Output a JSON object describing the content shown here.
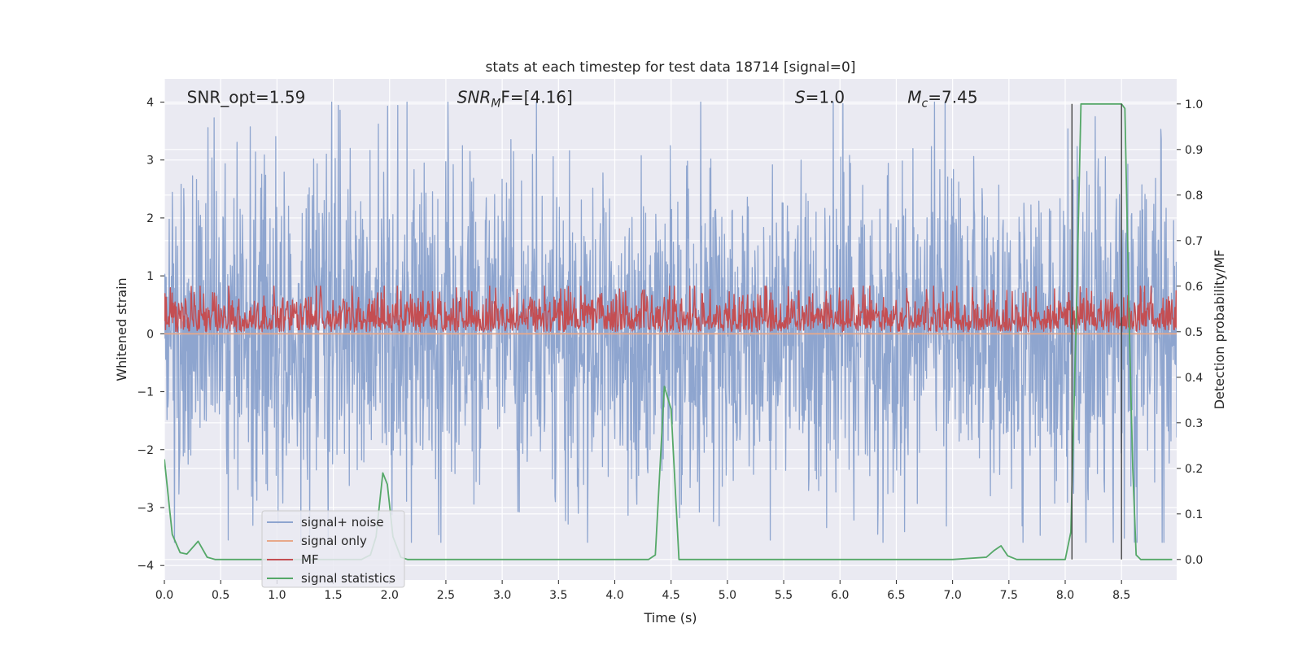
{
  "chart_data": {
    "type": "line",
    "title": "stats at each timestep for test data 18714 [signal=0]",
    "xlabel": "Time (s)",
    "ylabel": "Whitened strain",
    "ylabel_right": "Detection probability/MF",
    "xlim": [
      0.0,
      8.99
    ],
    "ylim": [
      -4.25,
      4.4
    ],
    "ylim_right": [
      -0.045,
      1.055
    ],
    "x_ticks": [
      "0.0",
      "0.5",
      "1.0",
      "1.5",
      "2.0",
      "2.5",
      "3.0",
      "3.5",
      "4.0",
      "4.5",
      "5.0",
      "5.5",
      "6.0",
      "6.5",
      "7.0",
      "7.5",
      "8.0",
      "8.5"
    ],
    "x_tick_values": [
      0.0,
      0.5,
      1.0,
      1.5,
      2.0,
      2.5,
      3.0,
      3.5,
      4.0,
      4.5,
      5.0,
      5.5,
      6.0,
      6.5,
      7.0,
      7.5,
      8.0,
      8.5
    ],
    "y_ticks": [
      "4",
      "3",
      "2",
      "1",
      "0",
      "−1",
      "−2",
      "−3",
      "−4"
    ],
    "y_tick_values": [
      4,
      3,
      2,
      1,
      0,
      -1,
      -2,
      -3,
      -4
    ],
    "y_right_ticks": [
      "1.0",
      "0.9",
      "0.8",
      "0.7",
      "0.6",
      "0.5",
      "0.4",
      "0.3",
      "0.2",
      "0.1",
      "0.0"
    ],
    "y_right_tick_values": [
      1.0,
      0.9,
      0.8,
      0.7,
      0.6,
      0.5,
      0.4,
      0.3,
      0.2,
      0.1,
      0.0
    ],
    "grid": true,
    "legend_position": "lower-left",
    "annotations": [
      {
        "text": "SNR_opt=1.59",
        "x": 0.2,
        "y": 4.1
      },
      {
        "base": "SNR",
        "sub": "M",
        "rest": "F=[4.16]",
        "x": 2.6,
        "y": 4.1
      },
      {
        "base": "S",
        "rest": "=1.0",
        "x": 5.6,
        "y": 4.1
      },
      {
        "base": "M",
        "sub": "c",
        "rest": "=7.45",
        "x": 6.6,
        "y": 4.1
      }
    ],
    "vlines": [
      {
        "x": 8.06,
        "y0": 0.0,
        "y1": 1.0,
        "axis": "right",
        "color": "#444444"
      },
      {
        "x": 8.5,
        "y0": 0.0,
        "y1": 1.0,
        "axis": "right",
        "color": "#444444"
      }
    ],
    "series": [
      {
        "name": "signal+ noise",
        "color": "#8ea5cf",
        "axis": "left",
        "style": "noise",
        "n_samples": 2300,
        "x_start": 0.0,
        "x_end": 8.99,
        "envelope": [
          -3.6,
          4.0
        ],
        "typical_abs": 1.1
      },
      {
        "name": "signal only",
        "color": "#e8a889",
        "axis": "left",
        "x": [
          0.0,
          8.99
        ],
        "y": [
          0.0,
          0.0
        ]
      },
      {
        "name": "MF",
        "color": "#c44e52",
        "axis": "right",
        "style": "noise",
        "n_samples": 1700,
        "x_start": 0.0,
        "x_end": 8.99,
        "baseline": 0.5,
        "typical_band": [
          0.5,
          0.56
        ],
        "peak": 0.6
      },
      {
        "name": "signal statistics",
        "color": "#55a868",
        "axis": "right",
        "x": [
          0.0,
          0.07,
          0.14,
          0.2,
          0.3,
          0.38,
          0.45,
          0.6,
          1.0,
          1.5,
          1.75,
          1.83,
          1.88,
          1.94,
          1.98,
          2.03,
          2.1,
          2.16,
          2.25,
          2.5,
          3.0,
          3.5,
          4.0,
          4.3,
          4.36,
          4.44,
          4.5,
          4.57,
          4.7,
          5.0,
          6.0,
          7.0,
          7.3,
          7.37,
          7.43,
          7.49,
          7.57,
          7.65,
          8.0,
          8.05,
          8.1,
          8.14,
          8.2,
          8.5,
          8.53,
          8.57,
          8.6,
          8.63,
          8.67,
          8.75,
          8.85,
          8.95
        ],
        "y": [
          0.22,
          0.055,
          0.015,
          0.012,
          0.04,
          0.005,
          0.0,
          0.0,
          0.0,
          0.0,
          0.0,
          0.01,
          0.05,
          0.19,
          0.165,
          0.05,
          0.005,
          0.0,
          0.0,
          0.0,
          0.0,
          0.0,
          0.0,
          0.0,
          0.01,
          0.38,
          0.33,
          0.0,
          0.0,
          0.0,
          0.0,
          0.0,
          0.005,
          0.02,
          0.03,
          0.008,
          0.0,
          0.0,
          0.0,
          0.06,
          0.55,
          1.0,
          1.0,
          1.0,
          0.99,
          0.5,
          0.2,
          0.01,
          0.0,
          0.0,
          0.0,
          0.0
        ]
      }
    ]
  }
}
